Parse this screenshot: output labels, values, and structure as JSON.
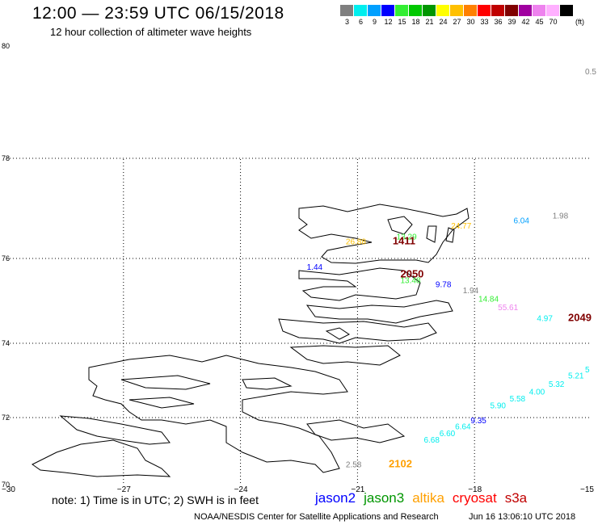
{
  "header": {
    "title": "12:00 — 23:59 UTC 06/15/2018",
    "subtitle": "12 hour collection of altimeter wave heights"
  },
  "scale": {
    "unit": "(ft)",
    "bins": [
      {
        "label": "3",
        "color": "#7f7f7f"
      },
      {
        "label": "6",
        "color": "#00eeee"
      },
      {
        "label": "9",
        "color": "#00a0ff"
      },
      {
        "label": "12",
        "color": "#0000ff"
      },
      {
        "label": "15",
        "color": "#33ee33"
      },
      {
        "label": "18",
        "color": "#00c800"
      },
      {
        "label": "21",
        "color": "#009600"
      },
      {
        "label": "24",
        "color": "#ffff00"
      },
      {
        "label": "27",
        "color": "#ffc000"
      },
      {
        "label": "30",
        "color": "#ff8000"
      },
      {
        "label": "33",
        "color": "#ff0000"
      },
      {
        "label": "36",
        "color": "#c00000"
      },
      {
        "label": "39",
        "color": "#800000"
      },
      {
        "label": "42",
        "color": "#a000a0"
      },
      {
        "label": "45",
        "color": "#ee82ee"
      },
      {
        "label": "70",
        "color": "#ffb0ff"
      },
      {
        "label": "",
        "color": "#000000"
      }
    ]
  },
  "map": {
    "lat_labels": [
      "80",
      "78",
      "76",
      "74",
      "72",
      "70"
    ],
    "lon_labels": [
      "−30",
      "−27",
      "−24",
      "−21",
      "−18",
      "−15"
    ],
    "lon_range": [
      -30,
      -15
    ],
    "lat_range": [
      70,
      80
    ],
    "grid": "dotted"
  },
  "wave_heights": [
    {
      "label": "0.5",
      "lon": -15.1,
      "lat": 79.5,
      "color": "#7f7f7f"
    },
    {
      "label": "1.98",
      "lon": -16.0,
      "lat": 76.8,
      "color": "#7f7f7f"
    },
    {
      "label": "6.04",
      "lon": -17.0,
      "lat": 76.7,
      "color": "#00a0ff"
    },
    {
      "label": "24.77",
      "lon": -18.6,
      "lat": 76.6,
      "color": "#ffc000"
    },
    {
      "label": "13.29",
      "lon": -20.0,
      "lat": 76.38,
      "color": "#33ee33"
    },
    {
      "label": "26.88",
      "lon": -21.3,
      "lat": 76.28,
      "color": "#ffc000"
    },
    {
      "label": "1411",
      "lon": -20.1,
      "lat": 76.28,
      "color": "#800000"
    },
    {
      "label": "1.44",
      "lon": -22.3,
      "lat": 75.73,
      "color": "#0000ff"
    },
    {
      "label": "2050",
      "lon": -19.9,
      "lat": 75.55,
      "color": "#800000"
    },
    {
      "label": "13.48",
      "lon": -19.9,
      "lat": 75.42,
      "color": "#33ee33"
    },
    {
      "label": "9.78",
      "lon": -19.0,
      "lat": 75.32,
      "color": "#0000ff"
    },
    {
      "label": "1.94",
      "lon": -18.3,
      "lat": 75.18,
      "color": "#7f7f7f"
    },
    {
      "label": "14.84",
      "lon": -17.9,
      "lat": 74.98,
      "color": "#33ee33"
    },
    {
      "label": "55.61",
      "lon": -17.4,
      "lat": 74.78,
      "color": "#ee82ee"
    },
    {
      "label": "4.97",
      "lon": -16.4,
      "lat": 74.52,
      "color": "#00eeee"
    },
    {
      "label": "2049",
      "lon": -15.6,
      "lat": 74.52,
      "color": "#800000"
    },
    {
      "label": "5",
      "lon": -15.1,
      "lat": 73.22,
      "color": "#00eeee"
    },
    {
      "label": "5.21",
      "lon": -15.6,
      "lat": 73.05,
      "color": "#00eeee"
    },
    {
      "label": "5.32",
      "lon": -16.1,
      "lat": 72.83,
      "color": "#00eeee"
    },
    {
      "label": "4.00",
      "lon": -16.6,
      "lat": 72.62,
      "color": "#00eeee"
    },
    {
      "label": "5.58",
      "lon": -17.1,
      "lat": 72.43,
      "color": "#00eeee"
    },
    {
      "label": "5.90",
      "lon": -17.6,
      "lat": 72.25,
      "color": "#00eeee"
    },
    {
      "label": "9.35",
      "lon": -18.1,
      "lat": 71.83,
      "color": "#0000ff"
    },
    {
      "label": "6.64",
      "lon": -18.5,
      "lat": 71.65,
      "color": "#00eeee"
    },
    {
      "label": "6.60",
      "lon": -18.9,
      "lat": 71.45,
      "color": "#00eeee"
    },
    {
      "label": "6.68",
      "lon": -19.3,
      "lat": 71.25,
      "color": "#00eeee"
    },
    {
      "label": "2.58",
      "lon": -21.3,
      "lat": 70.52,
      "color": "#7f7f7f"
    },
    {
      "label": "2102",
      "lon": -20.2,
      "lat": 70.52,
      "color": "#ffa000"
    }
  ],
  "footer": {
    "note": "note: 1) Time is in UTC; 2) SWH is in feet",
    "satellites": [
      {
        "name": "jason2",
        "color": "#0000ff"
      },
      {
        "name": "jason3",
        "color": "#009600"
      },
      {
        "name": "altika",
        "color": "#ffa000"
      },
      {
        "name": "cryosat",
        "color": "#ff0000"
      },
      {
        "name": "s3a",
        "color": "#c00000"
      }
    ],
    "credit": "NOAA/NESDIS Center for Satellite Applications and Research",
    "timestamp": "Jun 16 13:06:10 UTC 2018"
  }
}
